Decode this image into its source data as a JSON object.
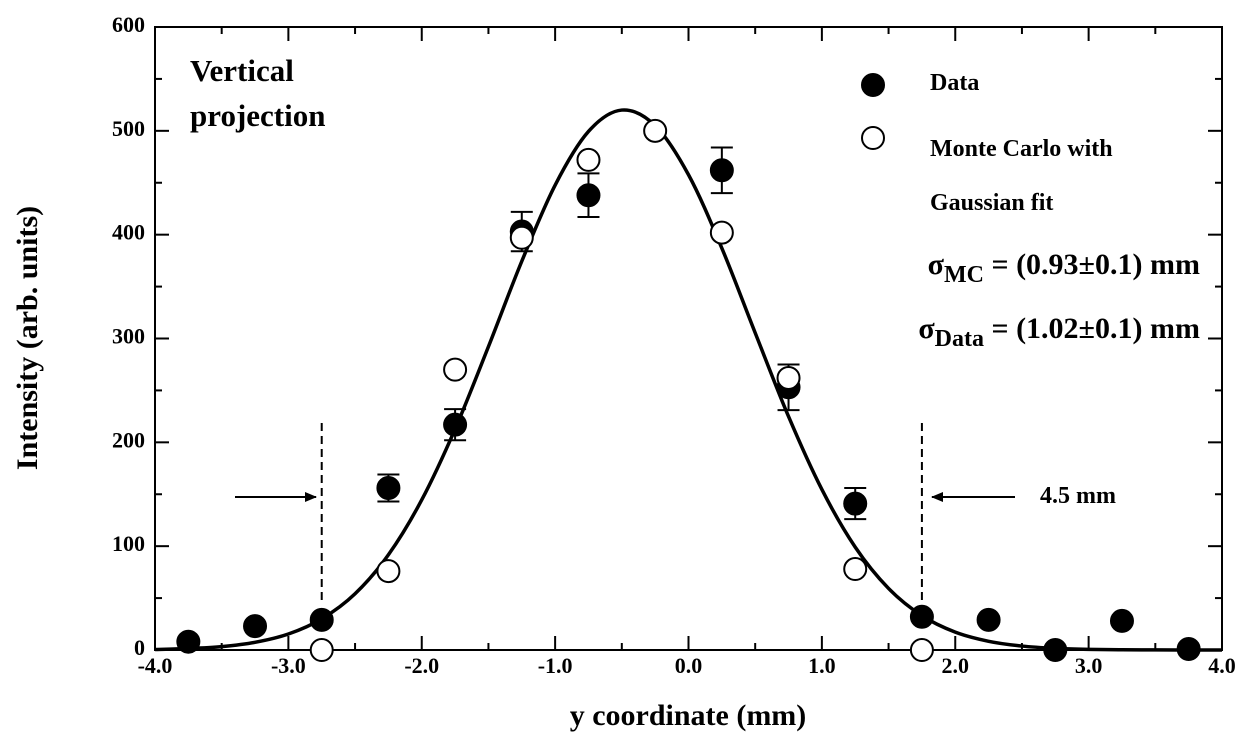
{
  "chart_data": {
    "type": "scatter",
    "xlabel": "y coordinate (mm)",
    "ylabel": "Intensity (arb. units)",
    "xlim": [
      -4,
      4
    ],
    "ylim": [
      0,
      600
    ],
    "xticks": [
      {
        "value": -4,
        "label": "-4.0"
      },
      {
        "value": -3,
        "label": "-3.0"
      },
      {
        "value": -2,
        "label": "-2.0"
      },
      {
        "value": -1,
        "label": "-1.0"
      },
      {
        "value": 0,
        "label": "0.0"
      },
      {
        "value": 1,
        "label": "1.0"
      },
      {
        "value": 2,
        "label": "2.0"
      },
      {
        "value": 3,
        "label": "3.0"
      },
      {
        "value": 4,
        "label": "4.0"
      }
    ],
    "yticks": [
      0,
      100,
      200,
      300,
      400,
      500,
      600
    ],
    "minor_xticks": [
      -3.5,
      -2.5,
      -1.5,
      -0.5,
      0.5,
      1.5,
      2.5,
      3.5
    ],
    "minor_yticks": [
      50,
      150,
      250,
      350,
      450,
      550
    ],
    "series": [
      {
        "name": "Data",
        "color": "#000000",
        "marker": "filled",
        "x": [
          -3.75,
          -3.25,
          -2.75,
          -2.25,
          -1.75,
          -1.25,
          -0.75,
          0.25,
          0.75,
          1.25,
          1.75,
          2.25,
          2.75,
          3.25,
          3.75
        ],
        "values": [
          8,
          23,
          29,
          156,
          217,
          403,
          438,
          462,
          253,
          141,
          32,
          29,
          0,
          28,
          1
        ],
        "errors": [
          null,
          null,
          null,
          13,
          15,
          19,
          21,
          22,
          22,
          15,
          null,
          null,
          null,
          null,
          null
        ]
      },
      {
        "name": "Monte Carlo with Gaussian fit",
        "color": "#000000",
        "marker": "open",
        "x": [
          -2.75,
          -2.25,
          -1.75,
          -1.25,
          -0.75,
          -0.25,
          0.25,
          0.75,
          1.25,
          1.75
        ],
        "values": [
          0,
          76,
          270,
          397,
          472,
          500,
          402,
          262,
          78,
          0
        ]
      }
    ],
    "fit_curve": {
      "color": "#000000",
      "x": [
        -4,
        -3.75,
        -3.5,
        -3.25,
        -3,
        -2.75,
        -2.5,
        -2.25,
        -2,
        -1.75,
        -1.5,
        -1.25,
        -1,
        -0.75,
        -0.5,
        -0.25,
        0,
        0.25,
        0.5,
        0.75,
        1,
        1.25,
        1.5,
        1.75,
        2,
        2.25,
        2.5,
        2.75,
        3,
        3.25,
        3.5,
        3.75,
        4
      ],
      "values": [
        0.5,
        1.4,
        3.3,
        7.4,
        15.4,
        30,
        54.2,
        91.7,
        144.6,
        212.8,
        292.2,
        374.4,
        447.7,
        499.4,
        520,
        505,
        457.7,
        387,
        305.4,
        224.9,
        154.6,
        99.1,
        59.3,
        33.1,
        17.2,
        8.4,
        3.8,
        1.6,
        0.6,
        0.2,
        0.1,
        0,
        0
      ]
    },
    "width_markers": [
      -2.75,
      1.75
    ],
    "annotations": {
      "projection": "Vertical projection",
      "sigma_mc": {
        "symbol": "σ",
        "subscript": "MC",
        "text": "= (0.93±0.1) mm"
      },
      "sigma_data": {
        "symbol": "σ",
        "subscript": "Data",
        "text": "= (1.02±0.1) mm"
      },
      "width": "4.5 mm"
    }
  }
}
